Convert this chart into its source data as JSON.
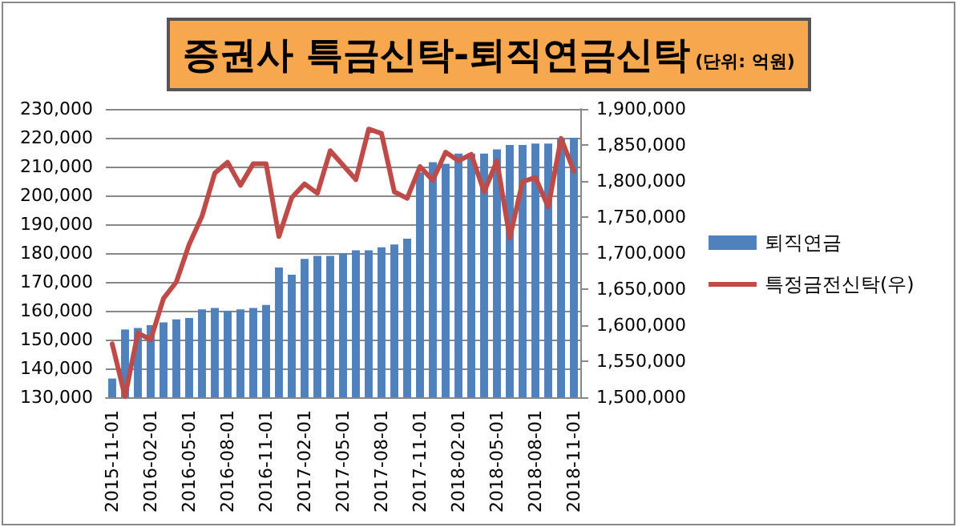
{
  "chart_data": {
    "type": "bar",
    "title": "증권사 특금신탁-퇴직연금신탁",
    "subtitle": "(단위: 억원)",
    "categories": [
      "2015-11-01",
      null,
      null,
      "2016-02-01",
      null,
      null,
      "2016-05-01",
      null,
      null,
      "2016-08-01",
      null,
      null,
      "2016-11-01",
      null,
      null,
      "2017-02-01",
      null,
      null,
      "2017-05-01",
      null,
      null,
      "2017-08-01",
      null,
      null,
      "2017-11-01",
      null,
      null,
      "2018-02-01",
      null,
      null,
      "2018-05-01",
      null,
      null,
      "2018-08-01",
      null,
      null,
      "2018-11-01"
    ],
    "series": [
      {
        "name": "퇴직연금",
        "color": "#4f81bd",
        "values": [
          136500,
          153500,
          154000,
          155000,
          156000,
          157000,
          157500,
          160500,
          161000,
          160000,
          160500,
          161000,
          162000,
          175000,
          172500,
          178000,
          179000,
          179000,
          180000,
          181000,
          181000,
          182000,
          183000,
          185000,
          208000,
          211500,
          211000,
          214500,
          214500,
          214500,
          216000,
          217500,
          217500,
          218000,
          218000,
          220000,
          220000
        ]
      },
      {
        "name": "특정금전신탁(우)",
        "type": "line",
        "axis": "y2",
        "color": "#be4b48",
        "marker": "none",
        "line_style": "solid",
        "values": [
          1574000,
          1501000,
          1589000,
          1580000,
          1637000,
          1660000,
          1712000,
          1751000,
          1811000,
          1826000,
          1794000,
          1824000,
          1824000,
          1723000,
          1777000,
          1796000,
          1783000,
          1842000,
          1822000,
          1802000,
          1872000,
          1866000,
          1785000,
          1776000,
          1820000,
          1801000,
          1840000,
          1828000,
          1837000,
          1785000,
          1828000,
          1721000,
          1799000,
          1805000,
          1764000,
          1859000,
          1814000
        ]
      }
    ],
    "ylim": [
      130000,
      230000
    ],
    "yticks": [
      {
        "value": 130000,
        "label": "130,000"
      },
      {
        "value": 140000,
        "label": "140,000"
      },
      {
        "value": 150000,
        "label": "150,000"
      },
      {
        "value": 160000,
        "label": "160,000"
      },
      {
        "value": 170000,
        "label": "170,000"
      },
      {
        "value": 180000,
        "label": "180,000"
      },
      {
        "value": 190000,
        "label": "190,000"
      },
      {
        "value": 200000,
        "label": "200,000"
      },
      {
        "value": 210000,
        "label": "210,000"
      },
      {
        "value": 220000,
        "label": "220,000"
      },
      {
        "value": 230000,
        "label": "230,000"
      }
    ],
    "y2lim": [
      1500000,
      1900000
    ],
    "y2ticks": [
      {
        "value": 1500000,
        "label": "1,500,000"
      },
      {
        "value": 1550000,
        "label": "1,550,000"
      },
      {
        "value": 1600000,
        "label": "1,600,000"
      },
      {
        "value": 1650000,
        "label": "1,650,000"
      },
      {
        "value": 1700000,
        "label": "1,700,000"
      },
      {
        "value": 1750000,
        "label": "1,750,000"
      },
      {
        "value": 1800000,
        "label": "1,800,000"
      },
      {
        "value": 1850000,
        "label": "1,850,000"
      },
      {
        "value": 1900000,
        "label": "1,900,000"
      }
    ],
    "grid": "y",
    "legend": "right"
  }
}
